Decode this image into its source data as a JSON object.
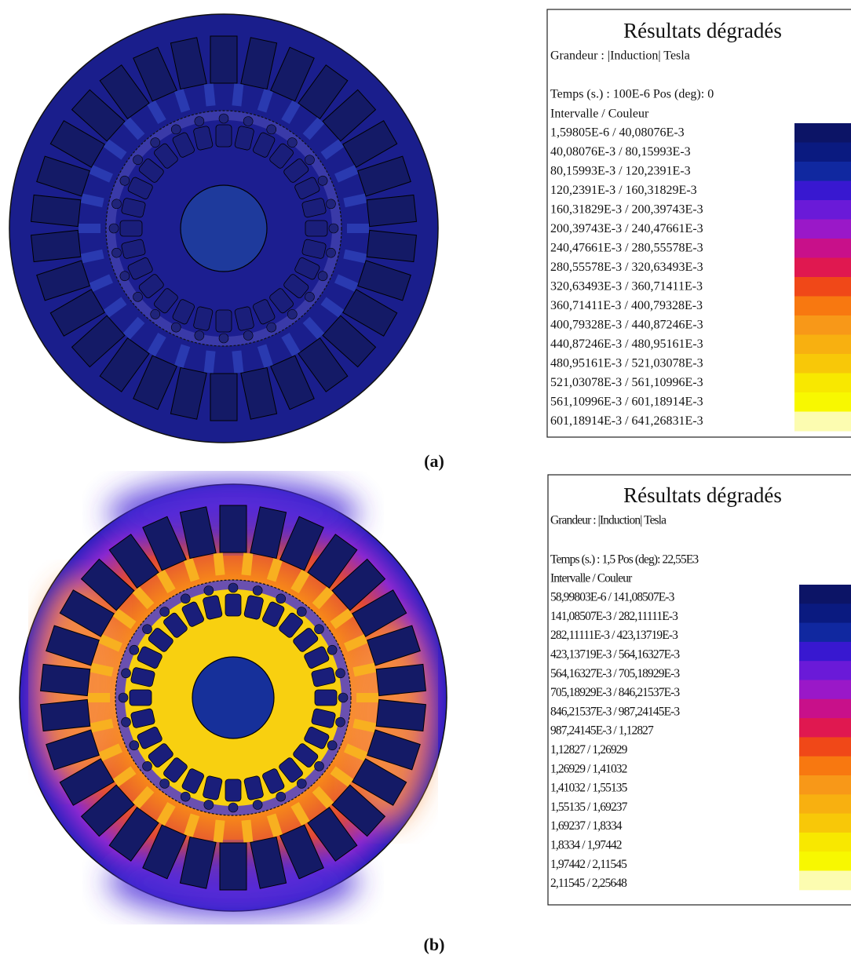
{
  "panels": [
    {
      "legend": {
        "title": "Résultats dégradés",
        "quantity": "Grandeur : |Induction| Tesla",
        "time": "Temps (s.) : 100E-6 Pos (deg): 0",
        "header": "Intervalle  /  Couleur",
        "intervals": [
          "1,59805E-6  /  40,08076E-3",
          "40,08076E-3  /  80,15993E-3",
          "80,15993E-3  /  120,2391E-3",
          "120,2391E-3  /  160,31829E-3",
          "160,31829E-3  /  200,39743E-3",
          "200,39743E-3  /  240,47661E-3",
          "240,47661E-3  /  280,55578E-3",
          "280,55578E-3  /  320,63493E-3",
          "320,63493E-3  /  360,71411E-3",
          "360,71411E-3  /  400,79328E-3",
          "400,79328E-3  /  440,87246E-3",
          "440,87246E-3  /  480,95161E-3",
          "480,95161E-3  /  521,03078E-3",
          "521,03078E-3  /  561,10996E-3",
          "561,10996E-3  /  601,18914E-3",
          "601,18914E-3  /  641,26831E-3"
        ]
      },
      "caption": "(a)"
    },
    {
      "legend": {
        "title": "Résultats dégradés",
        "quantity": "Grandeur : |Induction| Tesla",
        "time": "Temps (s.) : 1,5 Pos (deg): 22,55E3",
        "header": "Intervalle  /  Couleur",
        "intervals": [
          "58,99803E-6  /  141,08507E-3",
          "141,08507E-3  /  282,11111E-3",
          "282,11111E-3  /  423,13719E-3",
          "423,13719E-3  /  564,16327E-3",
          "564,16327E-3  /  705,18929E-3",
          "705,18929E-3  /  846,21537E-3",
          "846,21537E-3  /  987,24145E-3",
          "987,24145E-3  /  1,12827",
          "1,12827  /  1,26929",
          "1,26929  /  1,41032",
          "1,41032  /  1,55135",
          "1,55135  /  1,69237",
          "1,69237  /  1,8334",
          "1,8334  /  1,97442",
          "1,97442  /  2,11545",
          "2,11545  /  2,25648"
        ]
      },
      "caption": "(b)"
    }
  ]
}
